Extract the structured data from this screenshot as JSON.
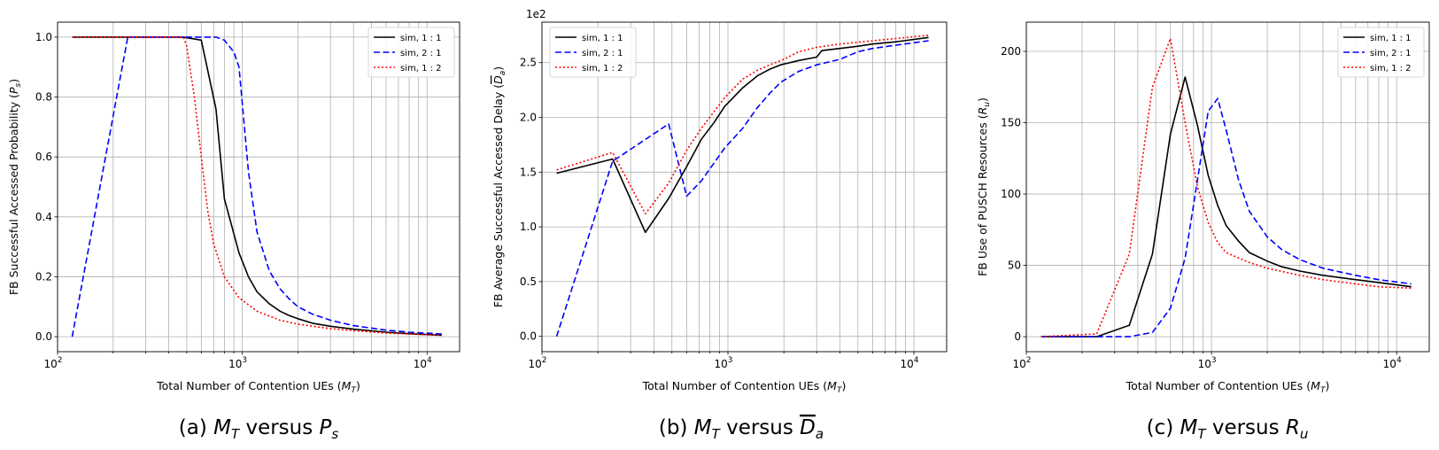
{
  "figure": {
    "panels": [
      {
        "caption": "(a) M_T versus P_s",
        "ylabel": "FB Successful Accessed Probability (P_s)"
      },
      {
        "caption": "(b) M_T versus D_a",
        "ylabel": "FB Average Successful Accessed Delay (D_a)",
        "offset_label": "1e2"
      },
      {
        "caption": "(c) M_T versus R_u",
        "ylabel": "FB Use of PUSCH Resources (R_u)"
      }
    ]
  },
  "chart_data": [
    {
      "type": "line",
      "title": "(a) M_T versus P_s",
      "xlabel": "Total Number of Contention UEs (M_T)",
      "ylabel": "FB Successful Accessed Probability (P_s)",
      "xscale": "log",
      "xlim": [
        100,
        15000
      ],
      "ylim": [
        -0.05,
        1.05
      ],
      "yticks": [
        0.0,
        0.2,
        0.4,
        0.6,
        0.8,
        1.0
      ],
      "ytick_labels": [
        "0.0",
        "0.2",
        "0.4",
        "0.6",
        "0.8",
        "1.0"
      ],
      "grid": true,
      "legend": "top-right",
      "series": [
        {
          "name": "sim, 1 : 1",
          "color": "#000000",
          "dash": "solid",
          "x": [
            120,
            240,
            360,
            480,
            600,
            720,
            800,
            960,
            1080,
            1200,
            1400,
            1600,
            1800,
            2000,
            2400,
            3000,
            4000,
            6000,
            8000,
            12000
          ],
          "y": [
            1.0,
            1.0,
            1.0,
            1.0,
            0.99,
            0.76,
            0.46,
            0.28,
            0.2,
            0.15,
            0.11,
            0.085,
            0.07,
            0.06,
            0.045,
            0.035,
            0.025,
            0.015,
            0.01,
            0.005
          ]
        },
        {
          "name": "sim, 2 : 1",
          "color": "#0000ff",
          "dash": "dashed",
          "x": [
            120,
            240,
            360,
            480,
            600,
            720,
            800,
            900,
            960,
            1080,
            1200,
            1400,
            1600,
            1800,
            2000,
            2400,
            3000,
            4000,
            6000,
            8000,
            12000
          ],
          "y": [
            0.0,
            1.0,
            1.0,
            1.0,
            1.0,
            1.0,
            0.99,
            0.95,
            0.9,
            0.55,
            0.35,
            0.22,
            0.16,
            0.125,
            0.1,
            0.075,
            0.055,
            0.037,
            0.022,
            0.015,
            0.009
          ]
        },
        {
          "name": "sim, 1 : 2",
          "color": "#ff0000",
          "dash": "dotted",
          "x": [
            120,
            240,
            360,
            480,
            500,
            550,
            600,
            650,
            700,
            800,
            960,
            1200,
            1600,
            2000,
            3000,
            4000,
            6000,
            8000,
            12000
          ],
          "y": [
            1.0,
            1.0,
            1.0,
            1.0,
            0.97,
            0.8,
            0.6,
            0.42,
            0.31,
            0.2,
            0.13,
            0.085,
            0.055,
            0.042,
            0.027,
            0.02,
            0.012,
            0.009,
            0.005
          ]
        }
      ]
    },
    {
      "type": "line",
      "title": "(b) M_T versus D_a",
      "xlabel": "Total Number of Contention UEs (M_T)",
      "ylabel": "FB Average Successful Accessed Delay (D_a)",
      "y_offset": "1e2",
      "xscale": "log",
      "xlim": [
        100,
        15000
      ],
      "ylim": [
        -0.14,
        2.87
      ],
      "yticks": [
        0.0,
        0.5,
        1.0,
        1.5,
        2.0,
        2.5
      ],
      "ytick_labels": [
        "0.0",
        "0.5",
        "1.0",
        "1.5",
        "2.0",
        "2.5"
      ],
      "grid": true,
      "legend": "top-left",
      "series": [
        {
          "name": "sim, 1 : 1",
          "color": "#000000",
          "dash": "solid",
          "x": [
            120,
            240,
            360,
            480,
            600,
            720,
            840,
            960,
            1200,
            1440,
            1680,
            1920,
            2400,
            3000,
            3200,
            4000,
            5000,
            6000,
            8000,
            12000
          ],
          "y": [
            1.49,
            1.62,
            0.95,
            1.26,
            1.55,
            1.8,
            1.95,
            2.1,
            2.27,
            2.38,
            2.44,
            2.48,
            2.52,
            2.55,
            2.61,
            2.63,
            2.65,
            2.67,
            2.69,
            2.73
          ]
        },
        {
          "name": "sim, 2 : 1",
          "color": "#0000ff",
          "dash": "dashed",
          "x": [
            120,
            240,
            480,
            600,
            720,
            960,
            1200,
            1440,
            1680,
            1920,
            2400,
            3000,
            4000,
            5000,
            6000,
            8000,
            12000
          ],
          "y": [
            0.0,
            1.6,
            1.94,
            1.28,
            1.42,
            1.72,
            1.9,
            2.09,
            2.22,
            2.32,
            2.42,
            2.48,
            2.53,
            2.6,
            2.63,
            2.66,
            2.7
          ]
        },
        {
          "name": "sim, 1 : 2",
          "color": "#ff0000",
          "dash": "dotted",
          "x": [
            120,
            240,
            360,
            480,
            600,
            720,
            840,
            960,
            1200,
            1440,
            1680,
            2000,
            2400,
            3000,
            4000,
            6000,
            8000,
            12000
          ],
          "y": [
            1.52,
            1.68,
            1.12,
            1.4,
            1.7,
            1.9,
            2.05,
            2.18,
            2.35,
            2.43,
            2.48,
            2.53,
            2.6,
            2.64,
            2.67,
            2.7,
            2.72,
            2.75
          ]
        }
      ]
    },
    {
      "type": "line",
      "title": "(c) M_T versus R_u",
      "xlabel": "Total Number of Contention UEs (M_T)",
      "ylabel": "FB Use of PUSCH Resources (R_u)",
      "xscale": "log",
      "xlim": [
        100,
        15000
      ],
      "ylim": [
        -10.5,
        220.5
      ],
      "yticks": [
        0,
        50,
        100,
        150,
        200
      ],
      "ytick_labels": [
        "0",
        "50",
        "100",
        "150",
        "200"
      ],
      "grid": true,
      "legend": "top-right",
      "series": [
        {
          "name": "sim, 1 : 1",
          "color": "#000000",
          "dash": "solid",
          "x": [
            120,
            240,
            360,
            480,
            600,
            720,
            840,
            960,
            1080,
            1200,
            1400,
            1600,
            2000,
            2400,
            3000,
            4000,
            6000,
            8000,
            12000
          ],
          "y": [
            0,
            0,
            8,
            58,
            142,
            182,
            148,
            113,
            92,
            78,
            67,
            59,
            53,
            49,
            46,
            43,
            40,
            38,
            35
          ]
        },
        {
          "name": "sim, 2 : 1",
          "color": "#0000ff",
          "dash": "dashed",
          "x": [
            120,
            240,
            360,
            480,
            600,
            720,
            840,
            960,
            1080,
            1200,
            1400,
            1600,
            2000,
            2400,
            3000,
            4000,
            6000,
            8000,
            12000
          ],
          "y": [
            0,
            0,
            0,
            3,
            20,
            55,
            110,
            158,
            167,
            145,
            110,
            88,
            70,
            61,
            54,
            48,
            43,
            40,
            37
          ]
        },
        {
          "name": "sim, 1 : 2",
          "color": "#ff0000",
          "dash": "dotted",
          "x": [
            120,
            240,
            360,
            480,
            600,
            720,
            840,
            960,
            1080,
            1200,
            1600,
            2000,
            3000,
            4000,
            6000,
            8000,
            12000
          ],
          "y": [
            0,
            2,
            58,
            175,
            209,
            150,
            105,
            80,
            66,
            59,
            52,
            48,
            43,
            40,
            37,
            35,
            34
          ]
        }
      ]
    }
  ]
}
